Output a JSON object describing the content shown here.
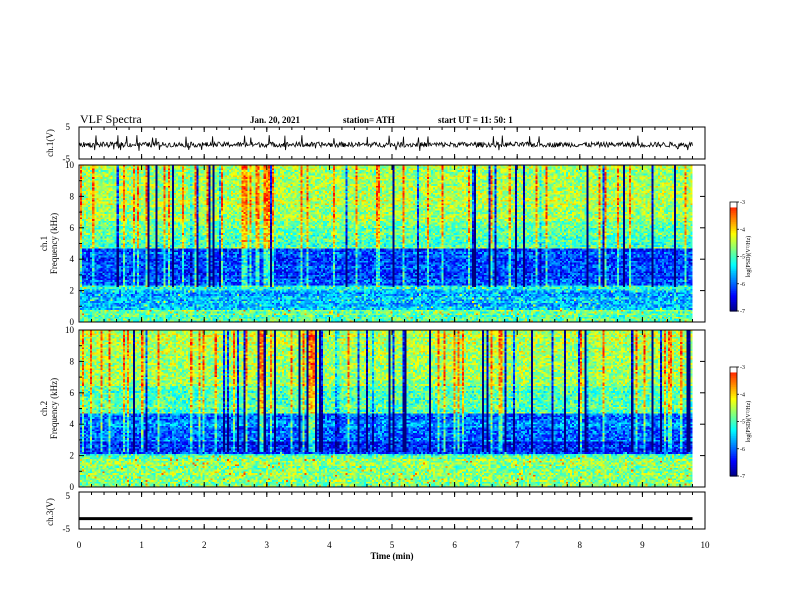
{
  "header": {
    "title": "VLF Spectra",
    "date": "Jan. 20, 2021",
    "station": "station= ATH",
    "start": "start UT = 11: 50: 1"
  },
  "colors": {
    "spectrum_scale": [
      "#00007f",
      "#0000ff",
      "#0080ff",
      "#00ffff",
      "#80ff80",
      "#ffff00",
      "#ff8000",
      "#ff0000",
      "#ffffff"
    ],
    "trace": "#000000"
  },
  "chart_data": [
    {
      "id": "ch1_waveform",
      "type": "line",
      "ylabel": "ch.1(V)",
      "ylim": [
        -5,
        5
      ],
      "yticks": [
        "5",
        "-5"
      ],
      "xlim": [
        0,
        10
      ],
      "series": [
        {
          "x": [
            0,
            9.8
          ],
          "y_mean": [
            -0.5,
            -0.5
          ],
          "y_range": [
            -2.5,
            2.5
          ]
        }
      ]
    },
    {
      "id": "ch1_spectrogram",
      "type": "heatmap",
      "ylabel": "ch.1 Frequency (kHz)",
      "ylim": [
        0,
        10
      ],
      "yticks": [
        "0",
        "2",
        "4",
        "6",
        "8",
        "10"
      ],
      "xlim": [
        0,
        10
      ],
      "data_extent_min": 9.8,
      "colorbar": {
        "label": "log(PSD)(V²/Hz)",
        "range": [
          -7,
          -3
        ],
        "ticks": [
          "-3",
          "-4",
          "-5",
          "-6",
          "-7"
        ]
      }
    },
    {
      "id": "ch2_spectrogram",
      "type": "heatmap",
      "ylabel": "ch.2 Frequency (kHz)",
      "ylim": [
        0,
        10
      ],
      "yticks": [
        "0",
        "2",
        "4",
        "6",
        "8",
        "10"
      ],
      "xlim": [
        0,
        10
      ],
      "data_extent_min": 9.8,
      "colorbar": {
        "label": "log(PSD)(V²/Hz)",
        "range": [
          -7,
          -3
        ],
        "ticks": [
          "-3",
          "-4",
          "-5",
          "-6",
          "-7"
        ]
      }
    },
    {
      "id": "ch3_waveform",
      "type": "line",
      "ylabel": "ch.3(V)",
      "ylim": [
        -5,
        5
      ],
      "yticks": [
        "5",
        "-5"
      ],
      "xlim": [
        0,
        10
      ],
      "xlabel": "Time (min)",
      "xticks": [
        "0",
        "1",
        "2",
        "3",
        "4",
        "5",
        "6",
        "7",
        "8",
        "9",
        "10"
      ],
      "series": [
        {
          "x": [
            0,
            9.8
          ],
          "y_mean": [
            -2.2,
            -2.2
          ],
          "y_range": [
            -2.6,
            -1.8
          ]
        }
      ]
    }
  ]
}
